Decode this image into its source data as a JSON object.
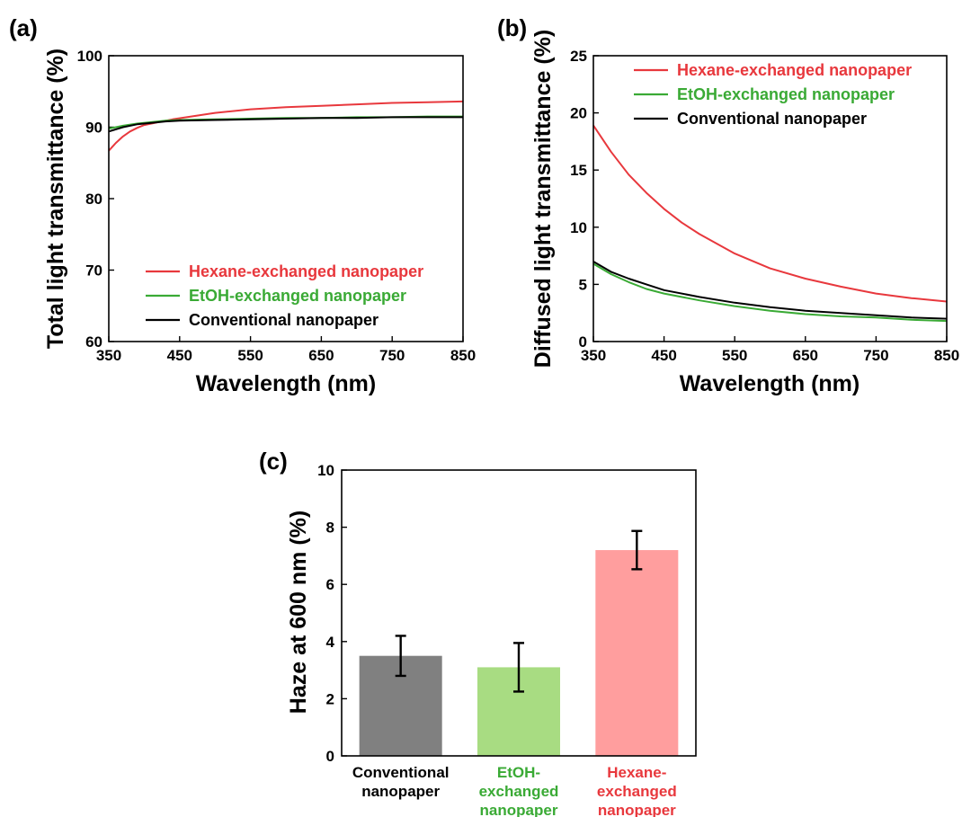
{
  "chart_data": [
    {
      "panel": "(a)",
      "type": "line",
      "xlabel": "Wavelength (nm)",
      "ylabel": "Total light transmittance (%)",
      "xlim": [
        350,
        850
      ],
      "ylim": [
        60,
        100
      ],
      "xticks": [
        350,
        450,
        550,
        650,
        750,
        850
      ],
      "yticks": [
        60,
        70,
        80,
        90,
        100
      ],
      "grid": false,
      "legend_position": "bottom-center",
      "series": [
        {
          "name": "Hexane-exchanged nanopaper",
          "color": "#e8383d",
          "x": [
            350,
            360,
            370,
            380,
            390,
            400,
            420,
            440,
            460,
            480,
            500,
            550,
            600,
            650,
            700,
            750,
            800,
            850
          ],
          "y": [
            86.7,
            87.8,
            88.7,
            89.4,
            89.9,
            90.3,
            90.7,
            91.1,
            91.4,
            91.7,
            92.0,
            92.5,
            92.8,
            93.0,
            93.2,
            93.4,
            93.5,
            93.6
          ]
        },
        {
          "name": "EtOH-exchanged nanopaper",
          "color": "#3aaa35",
          "x": [
            350,
            370,
            390,
            410,
            430,
            450,
            500,
            550,
            600,
            650,
            700,
            750,
            800,
            850
          ],
          "y": [
            89.8,
            90.2,
            90.5,
            90.7,
            90.9,
            91.0,
            91.1,
            91.2,
            91.3,
            91.3,
            91.4,
            91.4,
            91.5,
            91.5
          ]
        },
        {
          "name": "Conventional nanopaper",
          "color": "#000000",
          "x": [
            350,
            370,
            390,
            410,
            430,
            450,
            500,
            550,
            600,
            650,
            700,
            750,
            800,
            850
          ],
          "y": [
            89.4,
            90.0,
            90.4,
            90.6,
            90.8,
            90.9,
            91.0,
            91.1,
            91.2,
            91.3,
            91.3,
            91.4,
            91.4,
            91.4
          ]
        }
      ]
    },
    {
      "panel": "(b)",
      "type": "line",
      "xlabel": "Wavelength (nm)",
      "ylabel": "Diffused light transmittance (%)",
      "xlim": [
        350,
        850
      ],
      "ylim": [
        0,
        25
      ],
      "xticks": [
        350,
        450,
        550,
        650,
        750,
        850
      ],
      "yticks": [
        0,
        5,
        10,
        15,
        20,
        25
      ],
      "grid": false,
      "legend_position": "top-right",
      "series": [
        {
          "name": "Hexane-exchanged nanopaper",
          "color": "#e8383d",
          "x": [
            350,
            375,
            400,
            425,
            450,
            475,
            500,
            550,
            600,
            650,
            700,
            750,
            800,
            850
          ],
          "y": [
            18.9,
            16.6,
            14.6,
            13.0,
            11.6,
            10.4,
            9.4,
            7.7,
            6.4,
            5.5,
            4.8,
            4.2,
            3.8,
            3.5
          ]
        },
        {
          "name": "EtOH-exchanged nanopaper",
          "color": "#3aaa35",
          "x": [
            350,
            375,
            400,
            425,
            450,
            500,
            550,
            600,
            650,
            700,
            750,
            800,
            850
          ],
          "y": [
            6.8,
            5.9,
            5.2,
            4.6,
            4.2,
            3.6,
            3.1,
            2.7,
            2.4,
            2.2,
            2.1,
            1.9,
            1.8
          ]
        },
        {
          "name": "Conventional nanopaper",
          "color": "#000000",
          "x": [
            350,
            375,
            400,
            425,
            450,
            500,
            550,
            600,
            650,
            700,
            750,
            800,
            850
          ],
          "y": [
            7.0,
            6.1,
            5.5,
            5.0,
            4.5,
            3.9,
            3.4,
            3.0,
            2.7,
            2.5,
            2.3,
            2.1,
            2.0
          ]
        }
      ]
    },
    {
      "panel": "(c)",
      "type": "bar",
      "ylabel": "Haze at 600 nm (%)",
      "ylim": [
        0,
        10
      ],
      "yticks": [
        0,
        2,
        4,
        6,
        8,
        10
      ],
      "grid": false,
      "categories": [
        {
          "lines": [
            "Conventional",
            "nanopaper"
          ],
          "label_color": "#000000"
        },
        {
          "lines": [
            "EtOH-",
            "exchanged",
            "nanopaper"
          ],
          "label_color": "#3aaa35"
        },
        {
          "lines": [
            "Hexane-",
            "exchanged",
            "nanopaper"
          ],
          "label_color": "#e8383d"
        }
      ],
      "values": [
        3.5,
        3.1,
        7.2
      ],
      "errors": [
        0.7,
        0.85,
        0.67
      ],
      "bar_colors": [
        "#808080",
        "#a8dc82",
        "#ff9e9e"
      ]
    }
  ]
}
